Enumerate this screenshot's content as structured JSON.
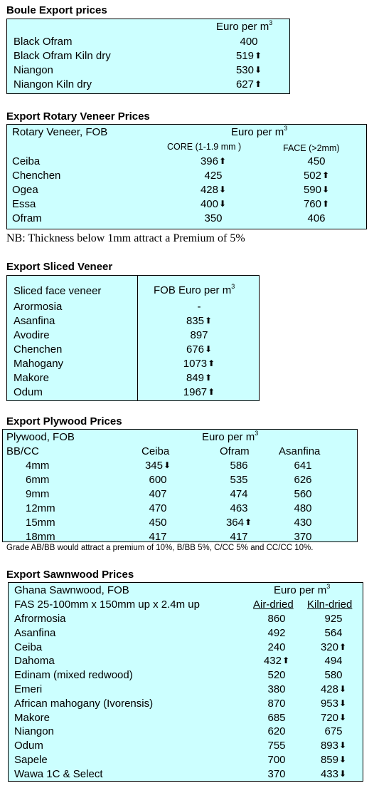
{
  "boule": {
    "title": "Boule Export prices",
    "unit": "Euro per m",
    "unit_sup": "3",
    "rows": [
      {
        "name": "Black Ofram",
        "value": "400",
        "trend": ""
      },
      {
        "name": "Black Ofram  Kiln dry",
        "value": "519",
        "trend": "up"
      },
      {
        "name": "Niangon",
        "value": "530",
        "trend": "down"
      },
      {
        "name": "Niangon Kiln dry",
        "value": "627",
        "trend": "up"
      }
    ]
  },
  "rotary": {
    "title": "Export Rotary Veneer Prices",
    "header": "Rotary Veneer,  FOB",
    "unit": "Euro  per m",
    "unit_sup": "3",
    "col1": "CORE (1-1.9 mm )",
    "col2": "FACE (>2mm)",
    "rows": [
      {
        "name": "Ceiba",
        "core": "396",
        "core_trend": "up",
        "face": "450",
        "face_trend": ""
      },
      {
        "name": "Chenchen",
        "core": "425",
        "core_trend": "",
        "face": "502",
        "face_trend": "up"
      },
      {
        "name": "Ogea",
        "core": "428",
        "core_trend": "down",
        "face": "590",
        "face_trend": "down"
      },
      {
        "name": "Essa",
        "core": "400",
        "core_trend": "down",
        "face": "760",
        "face_trend": "up"
      },
      {
        "name": "Ofram",
        "core": "350",
        "core_trend": "",
        "face": "406",
        "face_trend": ""
      }
    ],
    "note": "NB: Thickness below 1mm attract a Premium of 5%"
  },
  "sliced": {
    "title": "Export Sliced Veneer",
    "header_left": "Sliced face veneer",
    "header_right": "FOB Euro per m",
    "unit_sup": "3",
    "rows": [
      {
        "name": "Arormosia",
        "value": "-",
        "trend": ""
      },
      {
        "name": "Asanfina",
        "value": "835",
        "trend": "up"
      },
      {
        "name": "Avodire",
        "value": "897",
        "trend": ""
      },
      {
        "name": "Chenchen",
        "value": "676",
        "trend": "down"
      },
      {
        "name": "Mahogany",
        "value": "1073",
        "trend": "up"
      },
      {
        "name": "Makore",
        "value": "849",
        "trend": "up"
      },
      {
        "name": "Odum",
        "value": "1967",
        "trend": "up"
      }
    ]
  },
  "plywood": {
    "title": "Export Plywood Prices",
    "header": "Plywood, FOB",
    "unit": "Euro per m",
    "unit_sup": "3",
    "grade": "BB/CC",
    "cols": [
      "Ceiba",
      "Ofram",
      "Asanfina"
    ],
    "rows": [
      {
        "name": "4mm",
        "v": [
          "345",
          "586",
          "641"
        ],
        "t": [
          "down",
          "",
          ""
        ]
      },
      {
        "name": "6mm",
        "v": [
          "600",
          "535",
          "626"
        ],
        "t": [
          "",
          "",
          ""
        ]
      },
      {
        "name": "9mm",
        "v": [
          "407",
          "474",
          "560"
        ],
        "t": [
          "",
          "",
          ""
        ]
      },
      {
        "name": "12mm",
        "v": [
          "470",
          "463",
          "480"
        ],
        "t": [
          "",
          "",
          ""
        ]
      },
      {
        "name": "15mm",
        "v": [
          "450",
          "364",
          "430"
        ],
        "t": [
          "",
          "up",
          ""
        ]
      },
      {
        "name": "18mm",
        "v": [
          "417",
          "417",
          "370"
        ],
        "t": [
          "",
          "",
          ""
        ]
      }
    ],
    "note": "Grade AB/BB would attract a premium of 10%, B/BB 5%, C/CC 5% and CC/CC 10%."
  },
  "sawnwood": {
    "title": "Export Sawnwood Prices",
    "header": "Ghana Sawnwood, FOB",
    "unit": "Euro per m",
    "unit_sup": "3",
    "spec": "FAS 25-100mm x 150mm up x 2.4m up",
    "col1": "Air-dried",
    "col2": "Kiln-dried",
    "rows": [
      {
        "name": "Afrormosia",
        "air": "860",
        "air_trend": "",
        "kiln": "925",
        "kiln_trend": ""
      },
      {
        "name": "Asanfina",
        "air": "492",
        "air_trend": "",
        "kiln": "564",
        "kiln_trend": ""
      },
      {
        "name": "Ceiba",
        "air": "240",
        "air_trend": "",
        "kiln": "320",
        "kiln_trend": "up"
      },
      {
        "name": "Dahoma",
        "air": "432",
        "air_trend": "up",
        "kiln": "494",
        "kiln_trend": ""
      },
      {
        "name": "Edinam (mixed redwood)",
        "air": "520",
        "air_trend": "",
        "kiln": "580",
        "kiln_trend": ""
      },
      {
        "name": "Emeri",
        "air": "380",
        "air_trend": "",
        "kiln": "428",
        "kiln_trend": "down"
      },
      {
        "name": "African mahogany (Ivorensis)",
        "air": "870",
        "air_trend": "",
        "kiln": "953",
        "kiln_trend": "down"
      },
      {
        "name": "Makore",
        "air": "685",
        "air_trend": "",
        "kiln": "720",
        "kiln_trend": "down"
      },
      {
        "name": "Niangon",
        "air": "620",
        "air_trend": "",
        "kiln": "675",
        "kiln_trend": ""
      },
      {
        "name": "Odum",
        "air": "755",
        "air_trend": "",
        "kiln": "893",
        "kiln_trend": "down"
      },
      {
        "name": "Sapele",
        "air": "700",
        "air_trend": "",
        "kiln": "859",
        "kiln_trend": "down"
      },
      {
        "name": "Wawa 1C & Select",
        "air": "370",
        "air_trend": "",
        "kiln": "433",
        "kiln_trend": "down"
      }
    ]
  }
}
